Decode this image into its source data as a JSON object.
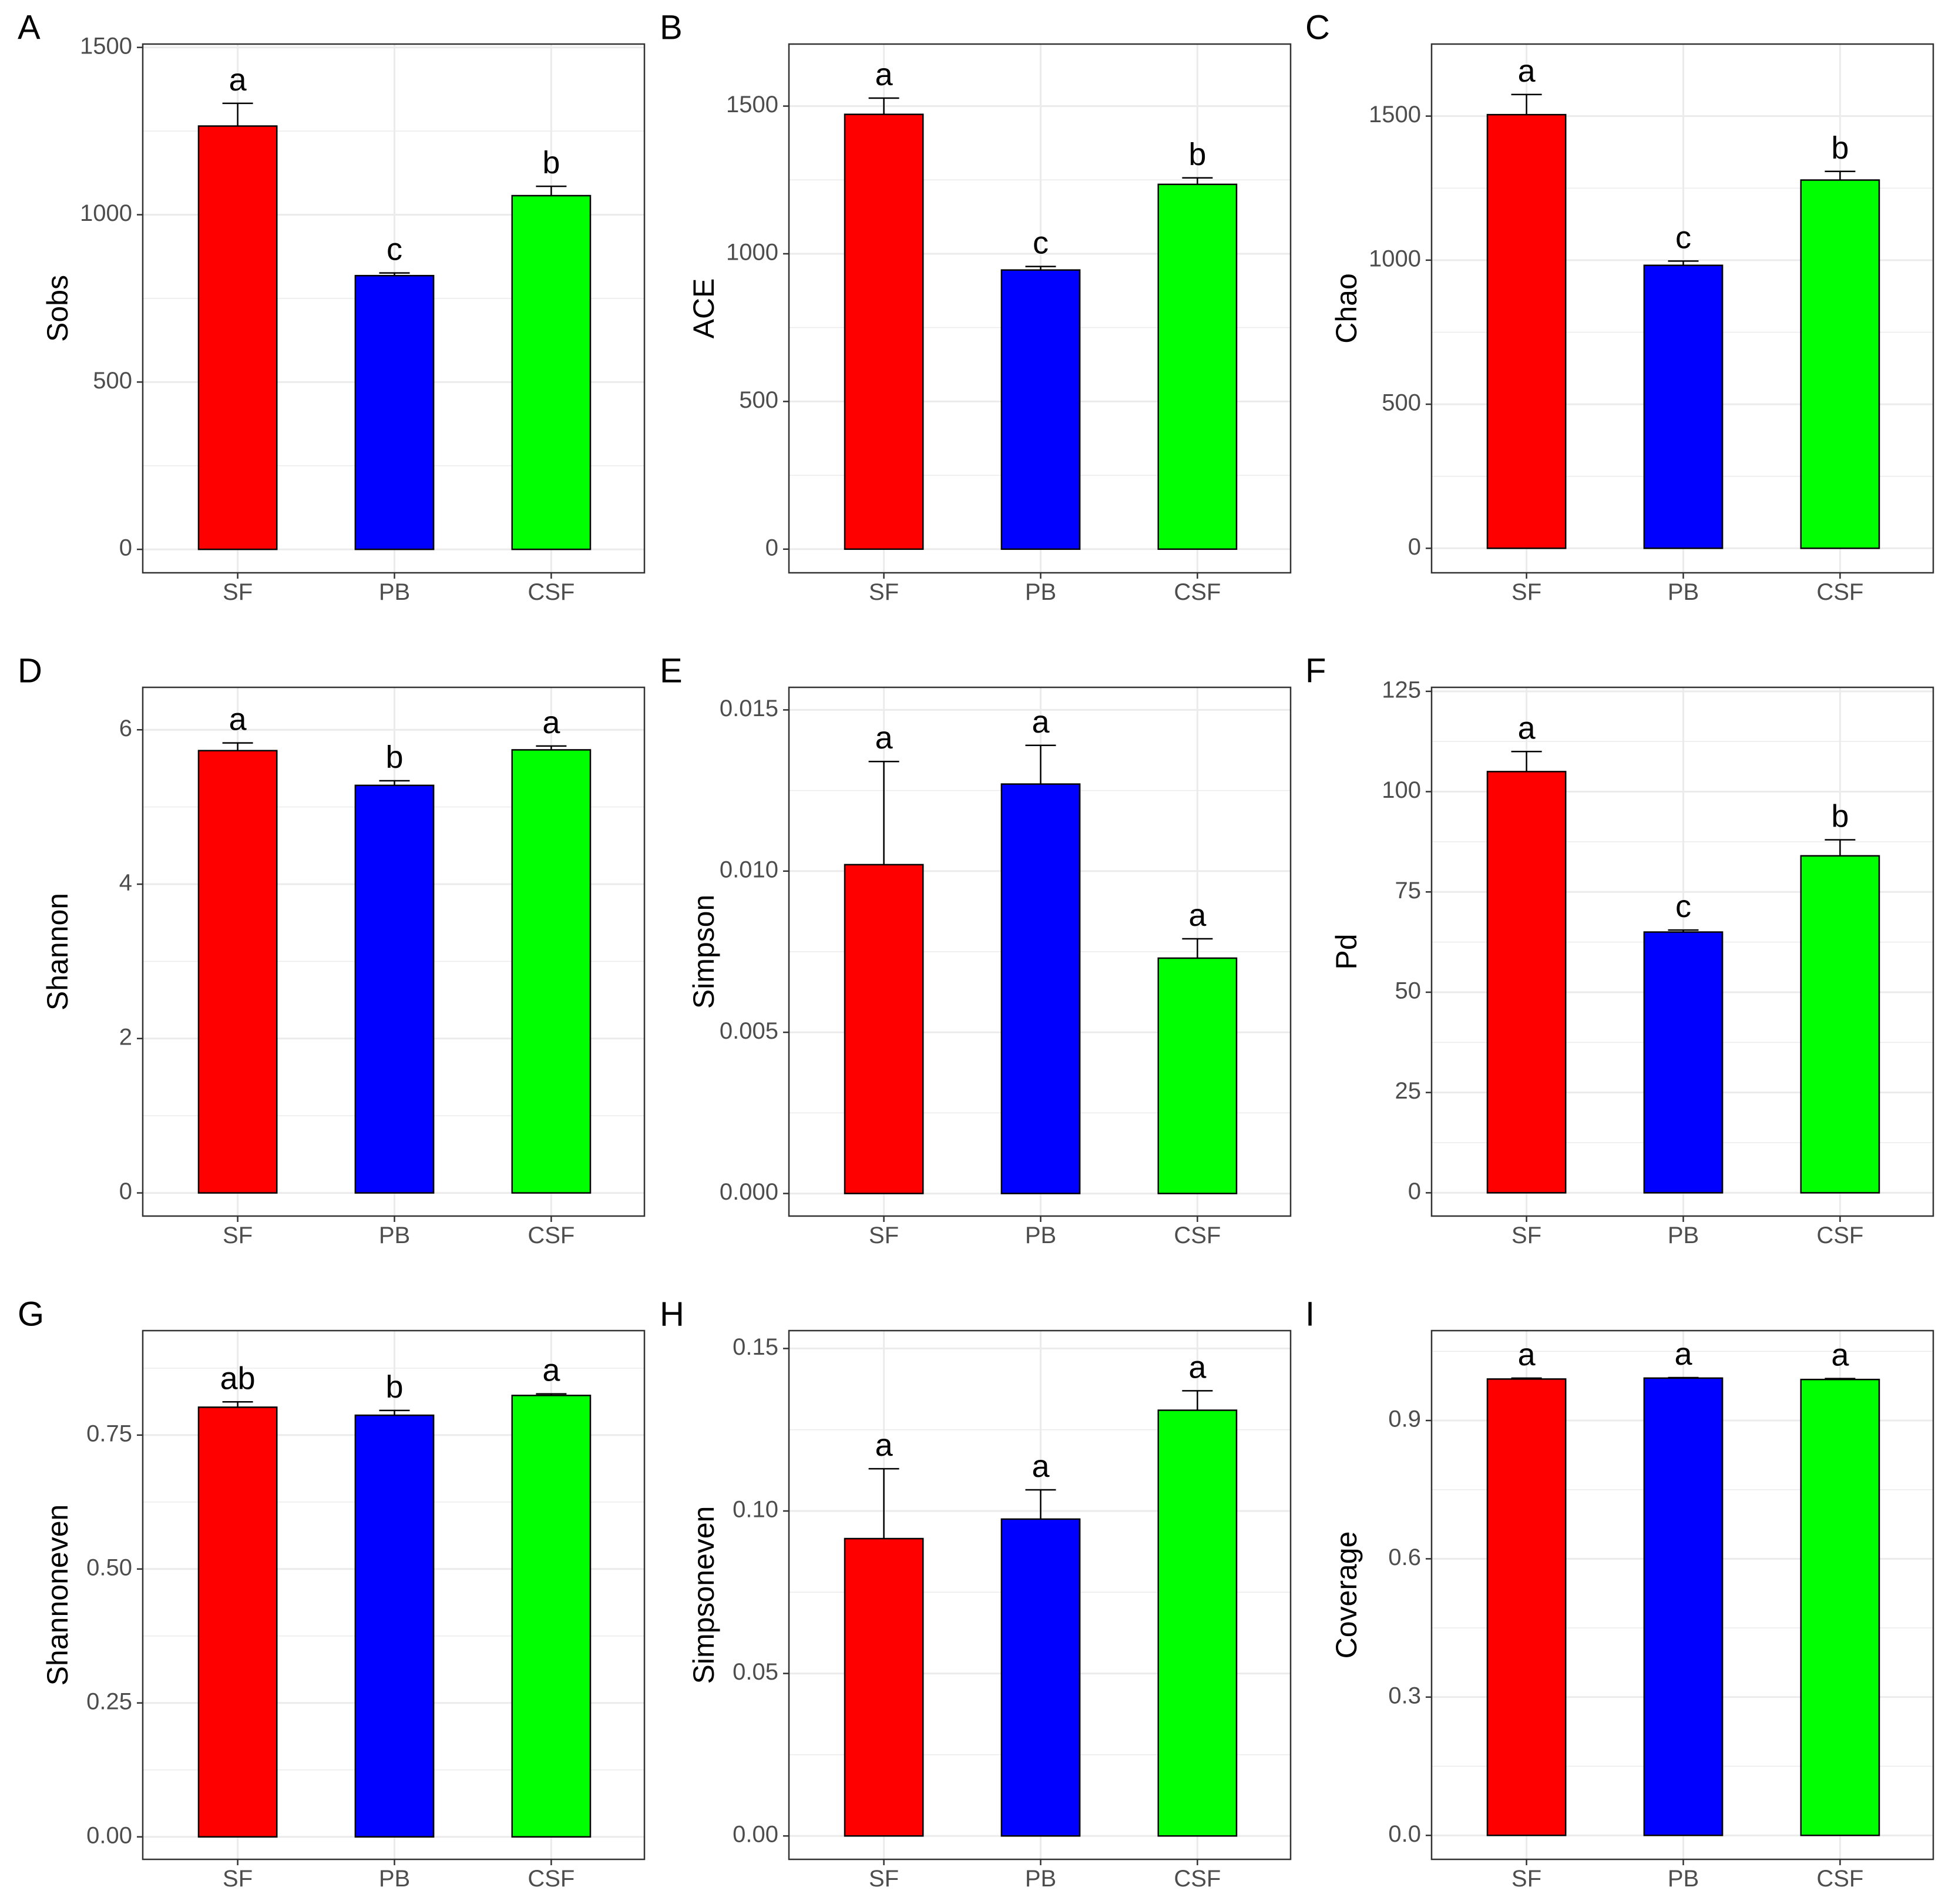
{
  "figure": {
    "colors": {
      "SF": "#ff0000",
      "PB": "#0000ff",
      "CSF": "#00ff00",
      "grid": "#ebebeb",
      "axis_text": "#4d4d4d",
      "frame": "#333333"
    }
  },
  "chart_data": [
    {
      "panel": "A",
      "type": "bar",
      "ylabel": "Sobs",
      "categories": [
        "SF",
        "PB",
        "CSF"
      ],
      "values": [
        1265,
        818,
        1057
      ],
      "errors": [
        68,
        8,
        28
      ],
      "letters": [
        "a",
        "c",
        "b"
      ],
      "ylim": [
        -70,
        1510
      ],
      "ticks": [
        0,
        500,
        1000,
        1500
      ],
      "tick_labels": [
        "0",
        "500",
        "1000",
        "1500"
      ]
    },
    {
      "panel": "B",
      "type": "bar",
      "ylabel": "ACE",
      "categories": [
        "SF",
        "PB",
        "CSF"
      ],
      "values": [
        1472,
        945,
        1235
      ],
      "errors": [
        55,
        12,
        22
      ],
      "letters": [
        "a",
        "c",
        "b"
      ],
      "ylim": [
        -80,
        1710
      ],
      "ticks": [
        0,
        500,
        1000,
        1500
      ],
      "tick_labels": [
        "0",
        "500",
        "1000",
        "1500"
      ]
    },
    {
      "panel": "C",
      "type": "bar",
      "ylabel": "Chao",
      "categories": [
        "SF",
        "PB",
        "CSF"
      ],
      "values": [
        1505,
        982,
        1278
      ],
      "errors": [
        70,
        15,
        30
      ],
      "letters": [
        "a",
        "c",
        "b"
      ],
      "ylim": [
        -85,
        1750
      ],
      "ticks": [
        0,
        500,
        1000,
        1500
      ],
      "tick_labels": [
        "0",
        "500",
        "1000",
        "1500"
      ]
    },
    {
      "panel": "D",
      "type": "bar",
      "ylabel": "Shannon",
      "categories": [
        "SF",
        "PB",
        "CSF"
      ],
      "values": [
        5.73,
        5.28,
        5.74
      ],
      "errors": [
        0.1,
        0.06,
        0.05
      ],
      "letters": [
        "a",
        "b",
        "a"
      ],
      "ylim": [
        -0.3,
        6.55
      ],
      "ticks": [
        0,
        2,
        4,
        6
      ],
      "tick_labels": [
        "0",
        "2",
        "4",
        "6"
      ]
    },
    {
      "panel": "E",
      "type": "bar",
      "ylabel": "Simpson",
      "categories": [
        "SF",
        "PB",
        "CSF"
      ],
      "values": [
        0.0102,
        0.0127,
        0.0073
      ],
      "errors": [
        0.0032,
        0.0012,
        0.0006
      ],
      "letters": [
        "a",
        "a",
        "a"
      ],
      "ylim": [
        -0.0007,
        0.0157
      ],
      "ticks": [
        0,
        0.005,
        0.01,
        0.015
      ],
      "tick_labels": [
        "0.000",
        "0.005",
        "0.010",
        "0.015"
      ]
    },
    {
      "panel": "F",
      "type": "bar",
      "ylabel": "Pd",
      "categories": [
        "SF",
        "PB",
        "CSF"
      ],
      "values": [
        105,
        65,
        84
      ],
      "errors": [
        5,
        0.5,
        4
      ],
      "letters": [
        "a",
        "c",
        "b"
      ],
      "ylim": [
        -5.8,
        126
      ],
      "ticks": [
        0,
        25,
        50,
        75,
        100,
        125
      ],
      "tick_labels": [
        "0",
        "25",
        "50",
        "75",
        "100",
        "125"
      ]
    },
    {
      "panel": "G",
      "type": "bar",
      "ylabel": "Shannoneven",
      "categories": [
        "SF",
        "PB",
        "CSF"
      ],
      "values": [
        0.802,
        0.787,
        0.824
      ],
      "errors": [
        0.01,
        0.009,
        0.003
      ],
      "letters": [
        "ab",
        "b",
        "a"
      ],
      "ylim": [
        -0.042,
        0.945
      ],
      "ticks": [
        0,
        0.25,
        0.5,
        0.75
      ],
      "tick_labels": [
        "0.00",
        "0.25",
        "0.50",
        "0.75"
      ]
    },
    {
      "panel": "H",
      "type": "bar",
      "ylabel": "Simpsoneven",
      "categories": [
        "SF",
        "PB",
        "CSF"
      ],
      "values": [
        0.0915,
        0.0975,
        0.131
      ],
      "errors": [
        0.0215,
        0.009,
        0.006
      ],
      "letters": [
        "a",
        "a",
        "a"
      ],
      "ylim": [
        -0.0072,
        0.1555
      ],
      "ticks": [
        0,
        0.05,
        0.1,
        0.15
      ],
      "tick_labels": [
        "0.00",
        "0.05",
        "0.10",
        "0.15"
      ]
    },
    {
      "panel": "I",
      "type": "bar",
      "ylabel": "Coverage",
      "categories": [
        "SF",
        "PB",
        "CSF"
      ],
      "values": [
        0.99,
        0.992,
        0.989
      ],
      "errors": [
        0.002,
        0.001,
        0.002
      ],
      "letters": [
        "a",
        "a",
        "a"
      ],
      "ylim": [
        -0.052,
        1.095
      ],
      "ticks": [
        0,
        0.3,
        0.6,
        0.9
      ],
      "tick_labels": [
        "0.0",
        "0.3",
        "0.6",
        "0.9"
      ]
    }
  ]
}
